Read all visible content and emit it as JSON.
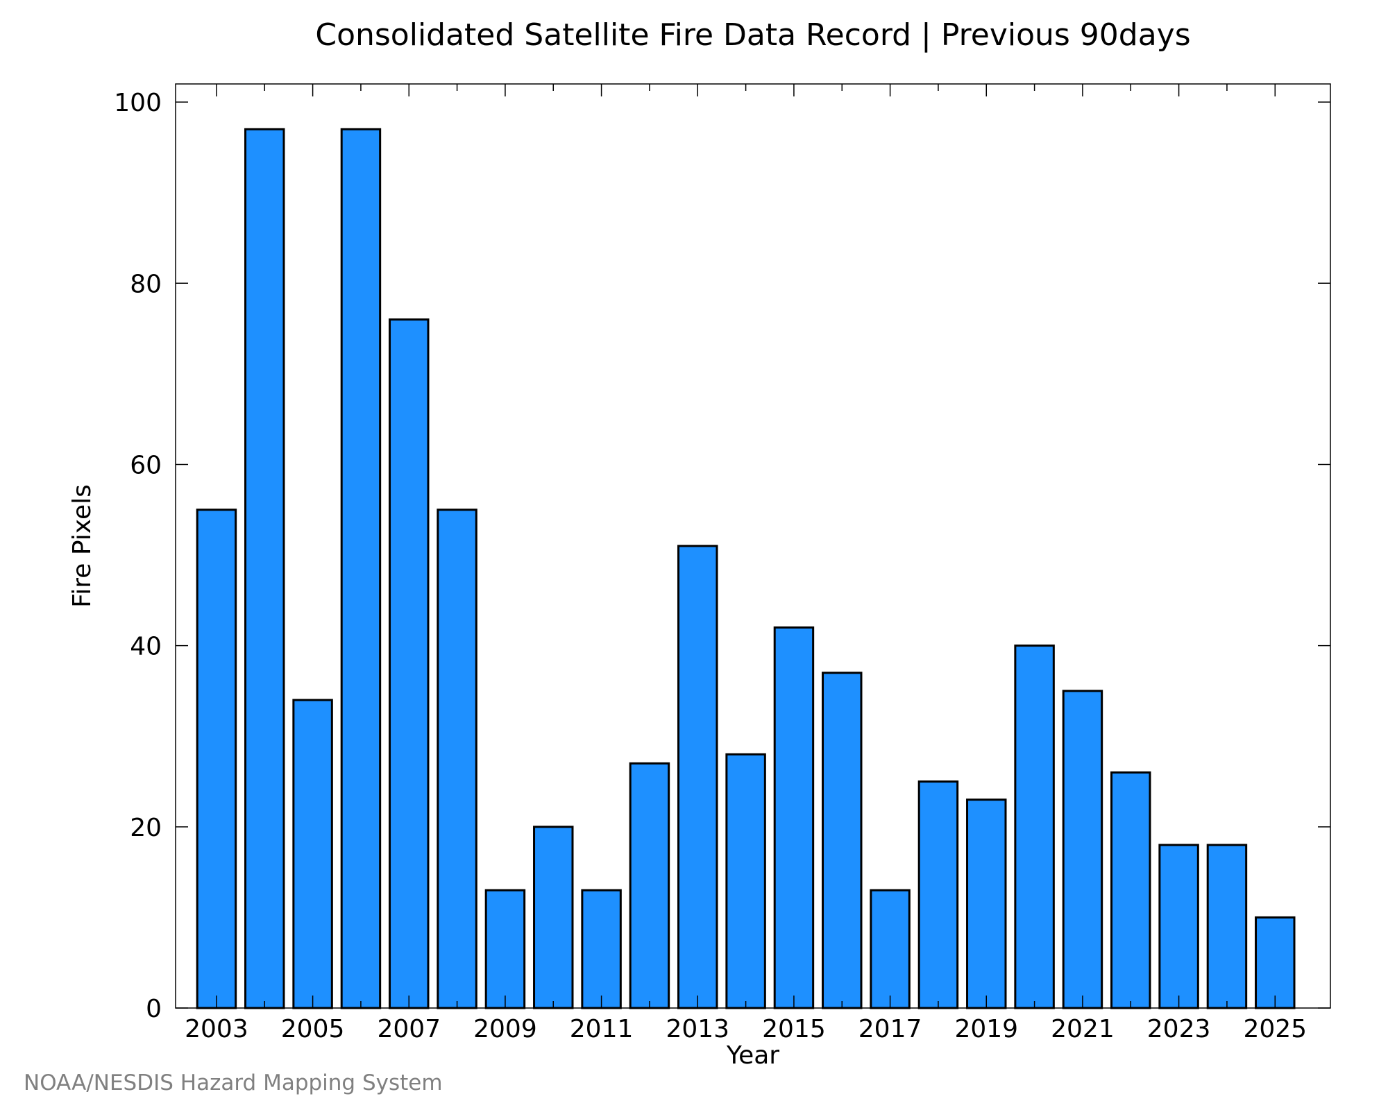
{
  "chart_data": {
    "type": "bar",
    "title": "Consolidated Satellite Fire Data Record | Previous 90days",
    "xlabel": "Year",
    "ylabel": "Fire Pixels",
    "ylim": [
      0,
      102
    ],
    "xlim": [
      2002.15,
      2026.15
    ],
    "yticks": [
      0,
      20,
      40,
      60,
      80,
      100
    ],
    "xticks": [
      2003,
      2005,
      2007,
      2009,
      2011,
      2013,
      2015,
      2017,
      2019,
      2021,
      2023,
      2025
    ],
    "minor_xticks": [
      2004,
      2006,
      2008,
      2010,
      2012,
      2014,
      2016,
      2018,
      2020,
      2022,
      2024
    ],
    "bar_color": "#1e90ff",
    "bar_edge_color": "#000000",
    "grid": false,
    "categories": [
      2003,
      2004,
      2005,
      2006,
      2007,
      2008,
      2009,
      2010,
      2011,
      2012,
      2013,
      2014,
      2015,
      2016,
      2017,
      2018,
      2019,
      2020,
      2021,
      2022,
      2023,
      2024,
      2025
    ],
    "values": [
      55,
      97,
      34,
      97,
      76,
      55,
      13,
      20,
      13,
      27,
      51,
      28,
      42,
      37,
      13,
      25,
      23,
      40,
      35,
      26,
      18,
      18,
      10
    ]
  },
  "credit": "NOAA/NESDIS Hazard Mapping System"
}
